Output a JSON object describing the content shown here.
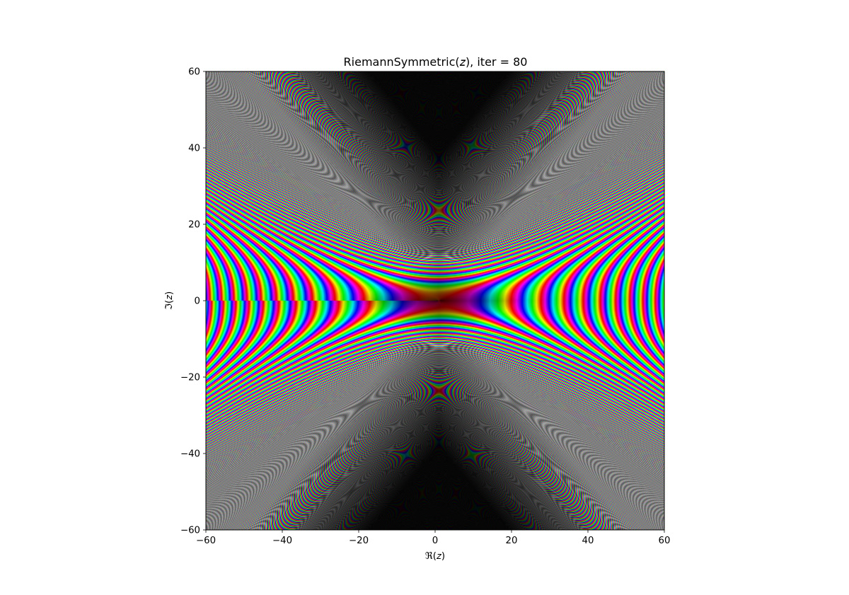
{
  "chart_data": {
    "type": "heatmap",
    "title": "RiemannSymmetric(𝑧), iter = 80",
    "xlabel": "ℜ(𝑧)",
    "ylabel": "ℑ(𝑧)",
    "xlim": [
      -60,
      60
    ],
    "ylim": [
      -60,
      60
    ],
    "x_ticks": [
      {
        "value": -60,
        "label": "−60"
      },
      {
        "value": -40,
        "label": "−40"
      },
      {
        "value": -20,
        "label": "−20"
      },
      {
        "value": 0,
        "label": "0"
      },
      {
        "value": 20,
        "label": "20"
      },
      {
        "value": 40,
        "label": "40"
      },
      {
        "value": 60,
        "label": "60"
      }
    ],
    "y_ticks": [
      {
        "value": -60,
        "label": "−60"
      },
      {
        "value": -40,
        "label": "−40"
      },
      {
        "value": -20,
        "label": "−20"
      },
      {
        "value": 0,
        "label": "0"
      },
      {
        "value": 20,
        "label": "20"
      },
      {
        "value": 40,
        "label": "40"
      },
      {
        "value": 60,
        "label": "60"
      }
    ],
    "colormap": "hsv domain coloring",
    "grid": false,
    "legend": false
  }
}
